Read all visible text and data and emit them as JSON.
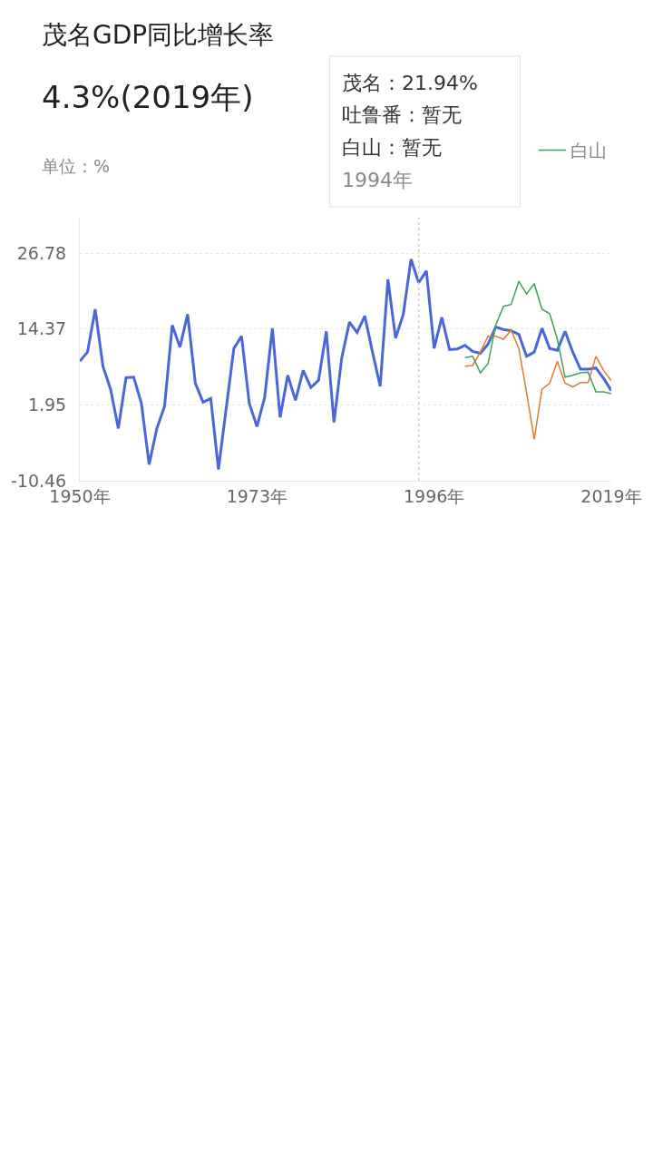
{
  "chart_data": {
    "type": "line",
    "title": "茂名GDP同比增长率",
    "subtitle": "4.3%(2019年)",
    "ylabel": "单位：%",
    "x": [
      1950,
      1951,
      1952,
      1953,
      1954,
      1955,
      1956,
      1957,
      1958,
      1959,
      1960,
      1961,
      1962,
      1963,
      1964,
      1965,
      1966,
      1967,
      1968,
      1969,
      1970,
      1971,
      1972,
      1973,
      1974,
      1975,
      1976,
      1977,
      1978,
      1979,
      1980,
      1981,
      1982,
      1983,
      1984,
      1985,
      1986,
      1987,
      1988,
      1989,
      1990,
      1991,
      1992,
      1993,
      1994,
      1995,
      1996,
      1997,
      1998,
      1999,
      2000,
      2001,
      2002,
      2003,
      2004,
      2005,
      2006,
      2007,
      2008,
      2009,
      2010,
      2011,
      2012,
      2013,
      2014,
      2015,
      2016,
      2017,
      2018,
      2019
    ],
    "series": [
      {
        "color": "#4a67d8",
        "values": [
          9.1,
          10.6,
          17.6,
          8.3,
          4.5,
          -1.9,
          6.4,
          6.5,
          2.2,
          -7.8,
          -1.9,
          1.7,
          15.0,
          11.4,
          16.8,
          5.5,
          2.4,
          3.0,
          -8.6,
          1.3,
          11.2,
          13.2,
          2.2,
          -1.6,
          3.2,
          14.5,
          -0.1,
          6.8,
          2.7,
          7.6,
          4.8,
          6.0,
          14.0,
          -0.9,
          9.6,
          15.5,
          13.8,
          16.5,
          10.6,
          5.0,
          22.5,
          12.9,
          16.8,
          25.8,
          21.94,
          23.9,
          11.2,
          16.3,
          11.0,
          11.1,
          11.7,
          10.7,
          10.4,
          11.9,
          14.7,
          14.3,
          14.1,
          13.5,
          9.9,
          10.6,
          14.5,
          11.2,
          10.9,
          14.0,
          10.6,
          7.8,
          7.8,
          8.0,
          6.3,
          4.3
        ]
      },
      {
        "color": "#e07b2a",
        "values": [
          null,
          null,
          null,
          null,
          null,
          null,
          null,
          null,
          null,
          null,
          null,
          null,
          null,
          null,
          null,
          null,
          null,
          null,
          null,
          null,
          null,
          null,
          null,
          null,
          null,
          null,
          null,
          null,
          null,
          null,
          null,
          null,
          null,
          null,
          null,
          null,
          null,
          null,
          null,
          null,
          null,
          null,
          null,
          null,
          null,
          null,
          null,
          null,
          null,
          null,
          8.3,
          8.4,
          10.6,
          13.2,
          13.2,
          12.7,
          14.2,
          11.2,
          4.0,
          -3.7,
          4.5,
          5.5,
          9.1,
          5.5,
          4.9,
          5.6,
          5.6,
          9.9,
          7.6,
          5.9
        ]
      },
      {
        "name": "白山",
        "color": "#3aa35c",
        "values": [
          null,
          null,
          null,
          null,
          null,
          null,
          null,
          null,
          null,
          null,
          null,
          null,
          null,
          null,
          null,
          null,
          null,
          null,
          null,
          null,
          null,
          null,
          null,
          null,
          null,
          null,
          null,
          null,
          null,
          null,
          null,
          null,
          null,
          null,
          null,
          null,
          null,
          null,
          null,
          null,
          null,
          null,
          null,
          null,
          null,
          null,
          null,
          null,
          null,
          null,
          9.7,
          9.9,
          7.2,
          8.7,
          15.0,
          18.1,
          18.4,
          22.2,
          20.1,
          21.8,
          17.6,
          16.9,
          12.7,
          6.5,
          6.8,
          7.2,
          7.3,
          4.1,
          4.1,
          3.8
        ]
      }
    ],
    "xlim": [
      1950,
      2019
    ],
    "xticks": [
      {
        "value": 1950,
        "label": "1950年"
      },
      {
        "value": 1973,
        "label": "1973年"
      },
      {
        "value": 1996,
        "label": "1996年"
      },
      {
        "value": 2019,
        "label": "2019年"
      }
    ],
    "ylim": [
      -10.46,
      32.6
    ],
    "yticks": [
      -10.46,
      1.95,
      14.37,
      26.78
    ],
    "grid": "y",
    "legend": "top right",
    "marker": "none",
    "line_style": "solid",
    "ref_lines": [
      {
        "axis": "x",
        "value": 1994,
        "color": "#cccccc",
        "line_style": "dotted"
      }
    ],
    "annotations": [
      "茂名：21.94%",
      "吐鲁番：暂无",
      "白山：暂无",
      "1994年"
    ]
  }
}
